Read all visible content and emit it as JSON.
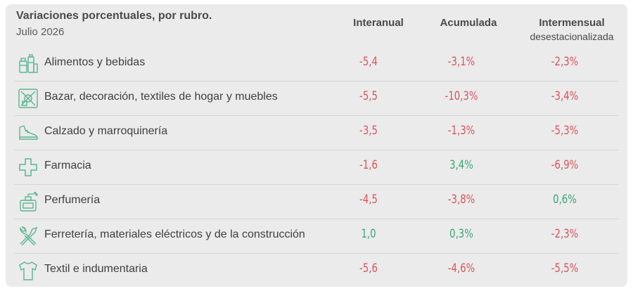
{
  "header": {
    "title": "Variaciones porcentuales, por rubro.",
    "subtitle": "Julio 2026",
    "columns": [
      {
        "label": "Interanual",
        "sub": ""
      },
      {
        "label": "Acumulada",
        "sub": ""
      },
      {
        "label": "Intermensual",
        "sub": "desestacionalizada"
      }
    ]
  },
  "colors": {
    "negative": "#d9545c",
    "positive": "#3aa876",
    "icon": "#5bb592"
  },
  "rows": [
    {
      "icon": "food-icon",
      "label": "Alimentos y bebidas",
      "interanual": "-5,4",
      "acumulada": "-3,1%",
      "intermensual": "-2,3%"
    },
    {
      "icon": "home-decor-icon",
      "label": "Bazar, decoración, textiles de hogar y muebles",
      "interanual": "-5,5",
      "acumulada": "-10,3%",
      "intermensual": "-3,4%"
    },
    {
      "icon": "shoe-icon",
      "label": "Calzado y marroquinería",
      "interanual": "-3,5",
      "acumulada": "-1,3%",
      "intermensual": "-5,3%"
    },
    {
      "icon": "pharmacy-cross-icon",
      "label": "Farmacia",
      "interanual": "-1,6",
      "acumulada": "3,4%",
      "intermensual": "-6,9%"
    },
    {
      "icon": "perfume-icon",
      "label": "Perfumería",
      "interanual": "-4,5",
      "acumulada": "-3,8%",
      "intermensual": "0,6%"
    },
    {
      "icon": "tools-icon",
      "label": "Ferretería, materiales eléctricos y de la construcción",
      "interanual": "1,0",
      "acumulada": "0,3%",
      "intermensual": "-2,3%"
    },
    {
      "icon": "shirt-icon",
      "label": "Textil e indumentaria",
      "interanual": "-5,6",
      "acumulada": "-4,6%",
      "intermensual": "-5,5%"
    }
  ],
  "chart_data": {
    "type": "table",
    "title": "Variaciones porcentuales, por rubro.",
    "subtitle": "Julio 2026",
    "columns": [
      "Interanual",
      "Acumulada",
      "Intermensual desestacionalizada"
    ],
    "categories": [
      "Alimentos y bebidas",
      "Bazar, decoración, textiles de hogar y muebles",
      "Calzado y marroquinería",
      "Farmacia",
      "Perfumería",
      "Ferretería, materiales eléctricos y de la construcción",
      "Textil e indumentaria"
    ],
    "series": [
      {
        "name": "Interanual",
        "values": [
          -5.4,
          -5.5,
          -3.5,
          -1.6,
          -4.5,
          1.0,
          -5.6
        ]
      },
      {
        "name": "Acumulada",
        "values": [
          -3.1,
          -10.3,
          -1.3,
          3.4,
          -3.8,
          0.3,
          -4.6
        ]
      },
      {
        "name": "Intermensual desestacionalizada",
        "values": [
          -2.3,
          -3.4,
          -5.3,
          -6.9,
          0.6,
          -2.3,
          -5.5
        ]
      }
    ]
  }
}
